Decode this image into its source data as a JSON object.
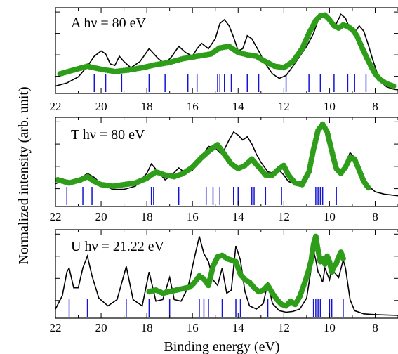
{
  "chart_data": {
    "type": "line",
    "xlabel": "Binding energy (eV)",
    "ylabel": "Normalized intensity (arb. unit)",
    "x_reversed": true,
    "xlim": [
      22,
      7
    ],
    "xticks": [
      "22",
      "20",
      "18",
      "16",
      "14",
      "12",
      "10",
      "8"
    ],
    "grid": false,
    "panels": [
      {
        "label": "A   hν = 80 eV",
        "ylim": [
          0,
          1.05
        ],
        "stick_energies": [
          20.3,
          19.8,
          19.1,
          17.9,
          17.2,
          16.2,
          15.8,
          14.9,
          14.8,
          14.6,
          14.3,
          13.6,
          13.1,
          11.9,
          10.9,
          10.4,
          9.8,
          9.2,
          8.9,
          8.4
        ],
        "series": [
          {
            "name": "",
            "style": "line",
            "color": "#000000",
            "x": [
              22,
              21.5,
              21.0,
              20.6,
              20.3,
              20.0,
              19.8,
              19.6,
              19.4,
              19.2,
              19.0,
              18.7,
              18.3,
              17.9,
              17.5,
              17.2,
              16.9,
              16.6,
              16.3,
              16.0,
              15.8,
              15.6,
              15.3,
              15.0,
              14.8,
              14.6,
              14.4,
              14.2,
              14.0,
              13.8,
              13.6,
              13.4,
              13.1,
              12.8,
              12.5,
              12.2,
              11.9,
              11.6,
              11.3,
              11.0,
              10.7,
              10.5,
              10.3,
              10.1,
              9.9,
              9.7,
              9.5,
              9.3,
              9.1,
              8.9,
              8.7,
              8.5,
              8.3,
              8.1,
              7.9,
              7.7,
              7.5,
              7.2,
              7.0
            ],
            "y": [
              0.06,
              0.1,
              0.18,
              0.32,
              0.45,
              0.52,
              0.48,
              0.35,
              0.33,
              0.45,
              0.38,
              0.3,
              0.38,
              0.55,
              0.42,
              0.35,
              0.45,
              0.58,
              0.5,
              0.45,
              0.55,
              0.62,
              0.55,
              0.68,
              0.88,
              0.93,
              0.85,
              0.7,
              0.52,
              0.55,
              0.72,
              0.68,
              0.52,
              0.35,
              0.22,
              0.16,
              0.2,
              0.32,
              0.45,
              0.58,
              0.75,
              0.92,
              1.0,
              0.95,
              0.85,
              0.88,
              1.0,
              0.95,
              0.8,
              0.75,
              0.85,
              0.78,
              0.6,
              0.4,
              0.22,
              0.1,
              0.05,
              0.02,
              0.01
            ]
          },
          {
            "name": "",
            "style": "points",
            "color": "#2e9e1a",
            "x": [
              21.8,
              21.2,
              20.6,
              20.0,
              19.4,
              18.8,
              18.2,
              17.6,
              17.0,
              16.4,
              15.8,
              15.2,
              14.8,
              14.4,
              14.0,
              13.6,
              13.2,
              12.8,
              12.4,
              12.0,
              11.6,
              11.2,
              10.9,
              10.6,
              10.4,
              10.2,
              10.0,
              9.8,
              9.6,
              9.4,
              9.2,
              9.0,
              8.8,
              8.6,
              8.4,
              8.2,
              8.0,
              7.8,
              7.6,
              7.4,
              7.2
            ],
            "y": [
              0.22,
              0.27,
              0.32,
              0.28,
              0.25,
              0.27,
              0.3,
              0.34,
              0.37,
              0.42,
              0.45,
              0.48,
              0.56,
              0.58,
              0.5,
              0.47,
              0.45,
              0.38,
              0.32,
              0.3,
              0.38,
              0.55,
              0.75,
              0.92,
              0.98,
              0.99,
              0.93,
              0.85,
              0.82,
              0.86,
              0.84,
              0.8,
              0.72,
              0.58,
              0.45,
              0.33,
              0.22,
              0.15,
              0.11,
              0.08,
              0.06
            ]
          }
        ]
      },
      {
        "label": "T   hν = 80 eV",
        "ylim": [
          0,
          1.05
        ],
        "stick_energies": [
          21.5,
          20.8,
          20.4,
          17.8,
          17.7,
          16.6,
          15.4,
          15.1,
          14.8,
          14.2,
          14.0,
          13.4,
          13.3,
          12.8,
          12.1,
          10.6,
          10.5,
          10.4,
          10.3,
          9.7
        ],
        "series": [
          {
            "name": "",
            "style": "line",
            "color": "#000000",
            "x": [
              22,
              21.6,
              21.2,
              20.9,
              20.6,
              20.3,
              20.0,
              19.5,
              19.0,
              18.5,
              18.0,
              17.8,
              17.5,
              17.2,
              16.9,
              16.6,
              16.3,
              16.0,
              15.6,
              15.3,
              15.0,
              14.8,
              14.6,
              14.4,
              14.2,
              14.0,
              13.8,
              13.6,
              13.4,
              13.2,
              13.0,
              12.7,
              12.4,
              12.2,
              12.0,
              11.8,
              11.5,
              11.2,
              10.9,
              10.7,
              10.5,
              10.3,
              10.1,
              9.9,
              9.7,
              9.5,
              9.3,
              9.1,
              8.9,
              8.7,
              8.4,
              8.0,
              7.6,
              7.0
            ],
            "y": [
              0.25,
              0.3,
              0.28,
              0.32,
              0.38,
              0.33,
              0.25,
              0.18,
              0.18,
              0.22,
              0.38,
              0.5,
              0.4,
              0.3,
              0.36,
              0.45,
              0.38,
              0.42,
              0.58,
              0.72,
              0.7,
              0.64,
              0.68,
              0.8,
              0.9,
              0.86,
              0.8,
              0.84,
              0.75,
              0.62,
              0.52,
              0.4,
              0.38,
              0.42,
              0.36,
              0.28,
              0.25,
              0.28,
              0.4,
              0.62,
              0.88,
              1.0,
              0.92,
              0.72,
              0.5,
              0.38,
              0.5,
              0.64,
              0.58,
              0.42,
              0.25,
              0.15,
              0.12,
              0.1
            ]
          },
          {
            "name": "",
            "style": "points",
            "color": "#2e9e1a",
            "x": [
              21.9,
              21.4,
              20.9,
              20.6,
              20.3,
              20.0,
              19.5,
              19.0,
              18.5,
              18.0,
              17.6,
              17.2,
              16.8,
              16.4,
              16.0,
              15.6,
              15.2,
              14.9,
              14.6,
              14.3,
              14.0,
              13.7,
              13.4,
              13.1,
              12.8,
              12.5,
              12.2,
              12.0,
              11.8,
              11.5,
              11.2,
              10.9,
              10.7,
              10.5,
              10.3,
              10.1,
              9.9,
              9.7,
              9.5,
              9.3,
              9.1,
              8.9,
              8.7,
              8.5,
              8.3
            ],
            "y": [
              0.3,
              0.26,
              0.3,
              0.34,
              0.28,
              0.24,
              0.22,
              0.24,
              0.26,
              0.32,
              0.4,
              0.36,
              0.34,
              0.38,
              0.46,
              0.58,
              0.68,
              0.74,
              0.62,
              0.5,
              0.44,
              0.48,
              0.56,
              0.46,
              0.36,
              0.36,
              0.44,
              0.48,
              0.36,
              0.26,
              0.24,
              0.4,
              0.68,
              0.92,
              1.0,
              0.9,
              0.66,
              0.44,
              0.38,
              0.46,
              0.58,
              0.56,
              0.42,
              0.28,
              0.2
            ]
          }
        ]
      },
      {
        "label": "U   hν = 21.22 eV",
        "ylim": [
          0,
          1.05
        ],
        "stick_energies": [
          21.4,
          20.6,
          18.9,
          17.9,
          17.0,
          15.7,
          15.5,
          15.3,
          14.7,
          14.1,
          13.9,
          12.7,
          10.7,
          10.6,
          10.5,
          10.4,
          10.0,
          9.9,
          9.4
        ],
        "series": [
          {
            "name": "",
            "style": "line",
            "color": "#000000",
            "x": [
              22,
              21.7,
              21.5,
              21.4,
              21.2,
              21.0,
              20.8,
              20.6,
              20.4,
              20.1,
              19.7,
              19.3,
              18.9,
              18.6,
              18.2,
              17.9,
              17.6,
              17.3,
              17.0,
              16.8,
              16.5,
              16.2,
              15.9,
              15.7,
              15.5,
              15.3,
              15.1,
              14.9,
              14.7,
              14.5,
              14.3,
              14.1,
              13.9,
              13.7,
              13.5,
              13.2,
              12.9,
              12.7,
              12.5,
              12.2,
              11.9,
              11.6,
              11.3,
              11.0,
              10.8,
              10.7,
              10.6,
              10.5,
              10.4,
              10.3,
              10.2,
              10.0,
              9.9,
              9.8,
              9.6,
              9.4,
              9.3,
              9.1,
              8.9,
              8.5,
              8.0,
              7.0
            ],
            "y": [
              0.08,
              0.25,
              0.55,
              0.6,
              0.35,
              0.35,
              0.6,
              0.75,
              0.5,
              0.22,
              0.12,
              0.2,
              0.62,
              0.2,
              0.12,
              0.55,
              0.18,
              0.2,
              0.48,
              0.2,
              0.18,
              0.35,
              0.75,
              1.0,
              0.78,
              0.68,
              0.45,
              0.38,
              0.6,
              0.28,
              0.32,
              0.88,
              0.7,
              0.3,
              0.12,
              0.08,
              0.15,
              0.42,
              0.15,
              0.06,
              0.04,
              0.05,
              0.08,
              0.22,
              0.6,
              0.82,
              0.7,
              0.55,
              0.5,
              0.42,
              0.6,
              0.45,
              0.6,
              0.55,
              0.48,
              0.7,
              0.6,
              0.2,
              0.06,
              0.02,
              0.01,
              0.0
            ]
          },
          {
            "name": "",
            "style": "points",
            "color": "#2e9e1a",
            "x": [
              17.9,
              17.6,
              17.3,
              17.0,
              16.7,
              16.4,
              16.1,
              15.9,
              15.7,
              15.5,
              15.3,
              15.1,
              14.9,
              14.7,
              14.5,
              14.3,
              14.1,
              13.9,
              13.7,
              13.5,
              13.3,
              13.1,
              12.9,
              12.7,
              12.5,
              12.3,
              12.1,
              11.9,
              11.7,
              11.5,
              11.3,
              11.1,
              10.9,
              10.8,
              10.7,
              10.6,
              10.5,
              10.4,
              10.3,
              10.2,
              10.1,
              10.0,
              9.9,
              9.8,
              9.7,
              9.6,
              9.5,
              9.4
            ],
            "y": [
              0.3,
              0.32,
              0.28,
              0.3,
              0.32,
              0.34,
              0.36,
              0.42,
              0.5,
              0.46,
              0.38,
              0.62,
              0.74,
              0.76,
              0.72,
              0.7,
              0.68,
              0.52,
              0.45,
              0.42,
              0.35,
              0.3,
              0.32,
              0.38,
              0.28,
              0.2,
              0.14,
              0.12,
              0.18,
              0.14,
              0.24,
              0.4,
              0.58,
              0.7,
              0.9,
              1.0,
              0.82,
              0.68,
              0.72,
              0.65,
              0.75,
              0.68,
              0.55,
              0.62,
              0.66,
              0.74,
              0.8,
              0.72
            ]
          }
        ]
      }
    ]
  },
  "colors": {
    "stick": "#1414d2",
    "points": "#2e9e1a",
    "line": "#000000"
  }
}
